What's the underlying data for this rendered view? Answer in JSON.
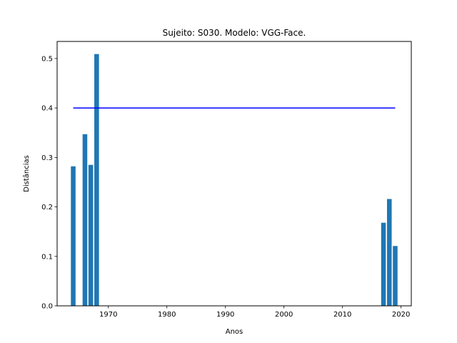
{
  "chart_data": {
    "type": "bar",
    "title": "Sujeito: S030. Modelo: VGG-Face.",
    "xlabel": "Anos",
    "ylabel": "Distâncias",
    "x": [
      1964,
      1966,
      1967,
      1968,
      2017,
      2018,
      2019
    ],
    "values": [
      0.282,
      0.347,
      0.285,
      0.509,
      0.168,
      0.216,
      0.121
    ],
    "bar_color": "#1f77b4",
    "threshold": {
      "y": 0.4,
      "x_start": 1964,
      "x_end": 2019,
      "color": "#0000ff"
    },
    "xlim": [
      1961.25,
      2021.75
    ],
    "ylim": [
      0,
      0.5345
    ],
    "xticks": [
      1970,
      1980,
      1990,
      2000,
      2010,
      2020
    ],
    "xtick_labels": [
      "1970",
      "1980",
      "1990",
      "2000",
      "2010",
      "2020"
    ],
    "yticks": [
      0.0,
      0.1,
      0.2,
      0.3,
      0.4,
      0.5
    ],
    "ytick_labels": [
      "0.0",
      "0.1",
      "0.2",
      "0.3",
      "0.4",
      "0.5"
    ],
    "grid": false,
    "legend": "none"
  }
}
